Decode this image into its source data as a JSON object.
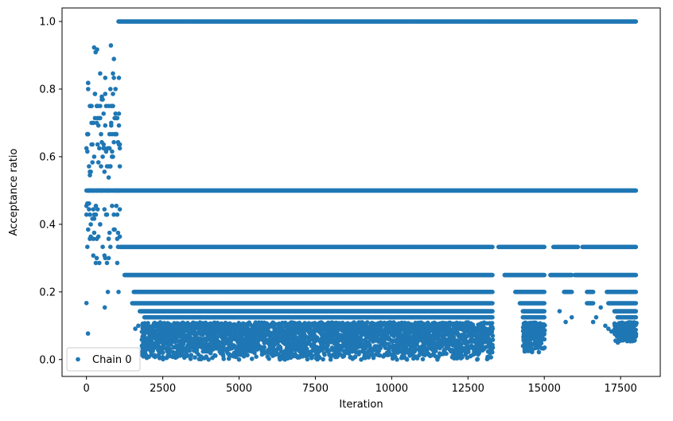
{
  "chart_data": {
    "type": "scatter",
    "title": "",
    "xlabel": "Iteration",
    "ylabel": "Acceptance ratio",
    "xlim": [
      -800,
      18800
    ],
    "ylim": [
      -0.05,
      1.04
    ],
    "x_ticks": [
      0,
      2500,
      5000,
      7500,
      10000,
      12500,
      15000,
      17500
    ],
    "x_tick_labels": [
      "0",
      "2500",
      "5000",
      "7500",
      "10000",
      "12500",
      "15000",
      "17500"
    ],
    "y_ticks": [
      0.0,
      0.2,
      0.4,
      0.6,
      0.8,
      1.0
    ],
    "y_tick_labels": [
      "0.0",
      "0.2",
      "0.4",
      "0.6",
      "0.8",
      "1.0"
    ],
    "grid": false,
    "legend_position": "lower-left",
    "marker_color": "#1f77b4",
    "series": [
      {
        "name": "Chain 0",
        "marker": "circle",
        "bands": [
          {
            "y": 1.0,
            "x_range": [
              1050,
              18000
            ]
          },
          {
            "y": 0.5,
            "x_range": [
              0,
              18000
            ]
          },
          {
            "y": 0.333,
            "x_range": [
              1100,
              18000
            ],
            "gaps": [
              [
                13300,
                13500
              ],
              [
                15000,
                15300
              ],
              [
                16100,
                16250
              ]
            ]
          },
          {
            "y": 0.25,
            "x_range": [
              1250,
              18000
            ],
            "gaps": [
              [
                13300,
                13700
              ],
              [
                15000,
                15200
              ],
              [
                15900,
                16000
              ]
            ]
          },
          {
            "y": 0.2,
            "x_range": [
              1550,
              18000
            ],
            "gaps": [
              [
                13300,
                14050
              ],
              [
                15000,
                15650
              ],
              [
                15900,
                16400
              ],
              [
                16600,
                17050
              ]
            ]
          },
          {
            "y": 0.1667,
            "x_range": [
              1500,
              18000
            ],
            "gaps": [
              [
                13300,
                14200
              ],
              [
                15000,
                16400
              ],
              [
                16600,
                17100
              ]
            ]
          },
          {
            "y": 0.1429,
            "x_range": [
              1750,
              18000
            ],
            "gaps": [
              [
                13300,
                14300
              ],
              [
                15000,
                17300
              ]
            ]
          },
          {
            "y": 0.125,
            "x_range": [
              1900,
              18000
            ],
            "gaps": [
              [
                13300,
                14300
              ],
              [
                15000,
                17400
              ]
            ]
          }
        ],
        "dense_regions": [
          {
            "x_range": [
              1800,
              13300
            ],
            "y_range": [
              0.0,
              0.11
            ]
          },
          {
            "x_range": [
              14300,
              15000
            ],
            "y_range": [
              0.02,
              0.11
            ]
          },
          {
            "x_range": [
              17300,
              18000
            ],
            "y_range": [
              0.05,
              0.11
            ]
          }
        ],
        "burn_in_region": {
          "x_range": [
            0,
            1100
          ],
          "y_range": [
            0.15,
            0.93
          ]
        },
        "sample_points": [
          [
            0,
            0.167
          ],
          [
            50,
            0.077
          ],
          [
            250,
            0.923
          ],
          [
            300,
            0.909
          ],
          [
            350,
            0.917
          ],
          [
            600,
            0.154
          ],
          [
            800,
            0.929
          ],
          [
            900,
            0.889
          ],
          [
            700,
            0.2
          ],
          [
            1050,
            0.2
          ],
          [
            1600,
            0.091
          ],
          [
            1700,
            0.1
          ],
          [
            15500,
            0.143
          ],
          [
            15700,
            0.111
          ],
          [
            15900,
            0.125
          ],
          [
            16600,
            0.111
          ],
          [
            16700,
            0.125
          ],
          [
            16850,
            0.154
          ],
          [
            17000,
            0.1
          ],
          [
            17100,
            0.091
          ],
          [
            17200,
            0.083
          ],
          [
            17950,
            0.056
          ],
          [
            18000,
            0.071
          ],
          [
            4000,
            0.0
          ],
          [
            5000,
            0.0
          ],
          [
            6500,
            0.0
          ],
          [
            8000,
            0.0
          ],
          [
            9000,
            0.0
          ],
          [
            10500,
            0.0
          ],
          [
            11500,
            0.0
          ],
          [
            12800,
            0.0
          ]
        ]
      }
    ]
  }
}
